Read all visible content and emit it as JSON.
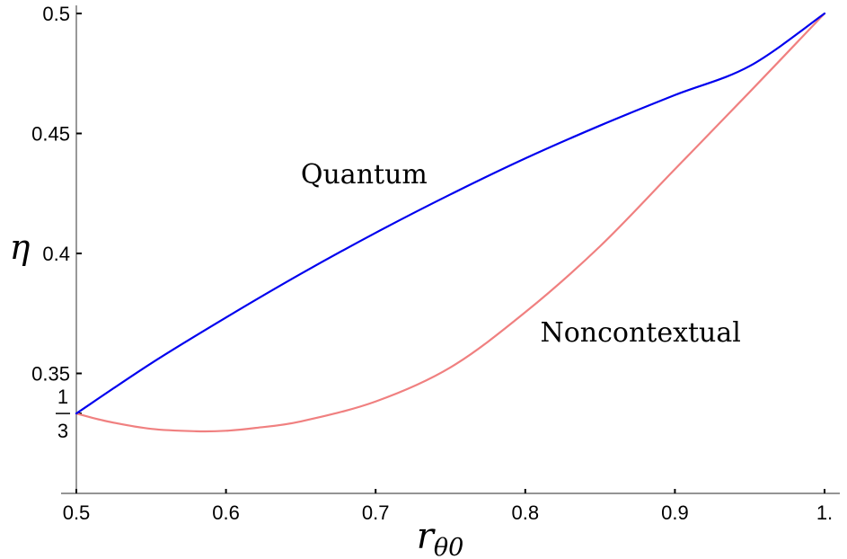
{
  "chart_data": {
    "type": "line",
    "xlabel": "r",
    "xlabel_sub": "θ0",
    "ylabel": "η",
    "xlim": [
      0.5,
      1.0
    ],
    "ylim": [
      0.3,
      0.5
    ],
    "x_ticks": [
      {
        "value": 0.5,
        "label": "0.5"
      },
      {
        "value": 0.6,
        "label": "0.6"
      },
      {
        "value": 0.7,
        "label": "0.7"
      },
      {
        "value": 0.8,
        "label": "0.8"
      },
      {
        "value": 0.9,
        "label": "0.9"
      },
      {
        "value": 1.0,
        "label": "1."
      }
    ],
    "y_ticks": [
      {
        "value": 0.35,
        "label": "0.35"
      },
      {
        "value": 0.4,
        "label": "0.4"
      },
      {
        "value": 0.45,
        "label": "0.45"
      },
      {
        "value": 0.5,
        "label": "0.5"
      }
    ],
    "y_special_tick": {
      "value": 0.3333,
      "numerator": "1",
      "denominator": "3"
    },
    "grid": false,
    "series": [
      {
        "name": "Quantum",
        "color": "#0000ee",
        "x": [
          0.5,
          0.55,
          0.6,
          0.65,
          0.7,
          0.75,
          0.8,
          0.85,
          0.9,
          0.95,
          1.0
        ],
        "y": [
          0.3333,
          0.3542,
          0.3733,
          0.3915,
          0.4086,
          0.4246,
          0.4396,
          0.4533,
          0.466,
          0.4781,
          0.5
        ]
      },
      {
        "name": "Noncontextual",
        "color": "#f08080",
        "x": [
          0.5,
          0.52,
          0.55,
          0.58,
          0.6,
          0.62,
          0.65,
          0.7,
          0.75,
          0.8,
          0.85,
          0.9,
          0.95,
          1.0
        ],
        "y": [
          0.3333,
          0.3301,
          0.3269,
          0.3259,
          0.3261,
          0.3273,
          0.33,
          0.3383,
          0.3525,
          0.3755,
          0.403,
          0.4351,
          0.4673,
          0.5
        ]
      }
    ],
    "annotations": [
      {
        "text": "Quantum",
        "x": 0.65,
        "y": 0.433
      },
      {
        "text": "Noncontextual",
        "x": 0.81,
        "y": 0.367
      }
    ]
  }
}
